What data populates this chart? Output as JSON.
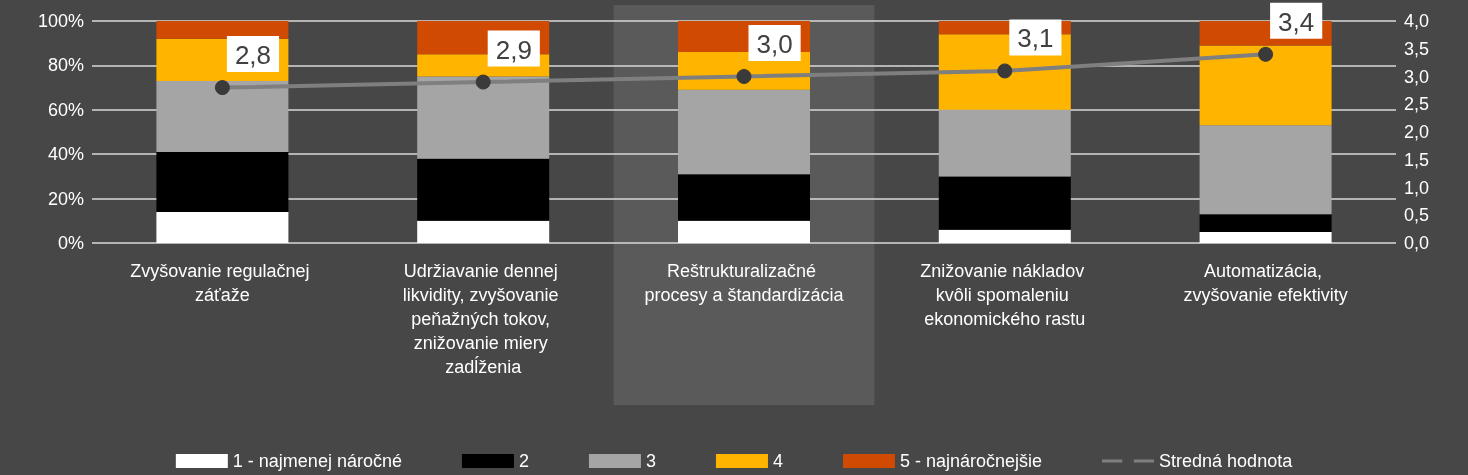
{
  "chart_data": {
    "type": "bar",
    "stacked": true,
    "categories": [
      "Zvyšovanie regulačnej záťaže",
      "Udržiavanie dennej likvidity, zvyšovanie peňažných tokov, znižovanie miery zadĺženia",
      "Reštrukturalizačné procesy a štandardizácia",
      "Znižovanie nákladov kvôli spomaleniu ekonomického rastu",
      "Automatizácia, zvyšovanie efektivity"
    ],
    "series": [
      {
        "name": "1 - najmenej náročné",
        "color": "#ffffff",
        "values": [
          14,
          10,
          10,
          6,
          5
        ]
      },
      {
        "name": "2",
        "color": "#000000",
        "values": [
          27,
          28,
          21,
          24,
          8
        ]
      },
      {
        "name": "3",
        "color": "#a5a5a5",
        "values": [
          32,
          37,
          38,
          30,
          40
        ]
      },
      {
        "name": "4",
        "color": "#ffb400",
        "values": [
          19,
          10,
          17,
          34,
          36
        ]
      },
      {
        "name": "5 - najnáročnejšie",
        "color": "#d04a02",
        "values": [
          8,
          15,
          14,
          6,
          11
        ]
      },
      {
        "name": "Stredná hodnota",
        "type": "line",
        "axis": "y2",
        "color": "#7f7f7f",
        "marker": "circle",
        "line_style": "solid",
        "values": [
          2.8,
          2.9,
          3.0,
          3.1,
          3.4
        ],
        "value_labels": [
          "2,8",
          "2,9",
          "3,0",
          "3,1",
          "3,4"
        ]
      }
    ],
    "ylim": [
      0,
      100
    ],
    "yticks": [
      {
        "value": 0,
        "label": "0%"
      },
      {
        "value": 20,
        "label": "20%"
      },
      {
        "value": 40,
        "label": "40%"
      },
      {
        "value": 60,
        "label": "60%"
      },
      {
        "value": 80,
        "label": "80%"
      },
      {
        "value": 100,
        "label": "100%"
      }
    ],
    "y2lim": [
      0,
      4
    ],
    "y2ticks": [
      {
        "value": 0,
        "label": "0,0"
      },
      {
        "value": 0.5,
        "label": "0,5"
      },
      {
        "value": 1,
        "label": "1,0"
      },
      {
        "value": 1.5,
        "label": "1,5"
      },
      {
        "value": 2,
        "label": "2,0"
      },
      {
        "value": 2.5,
        "label": "2,5"
      },
      {
        "value": 3,
        "label": "3,0"
      },
      {
        "value": 3.5,
        "label": "3,5"
      },
      {
        "value": 4,
        "label": "4,0"
      }
    ],
    "bands": [
      {
        "axis": "x",
        "from": "Reštrukturalizačné procesy a štandardizácia",
        "to": "Reštrukturalizačné procesy a štandardizácia",
        "color": "#5a5a5a"
      }
    ],
    "grid": "y",
    "legend": "bottom"
  }
}
